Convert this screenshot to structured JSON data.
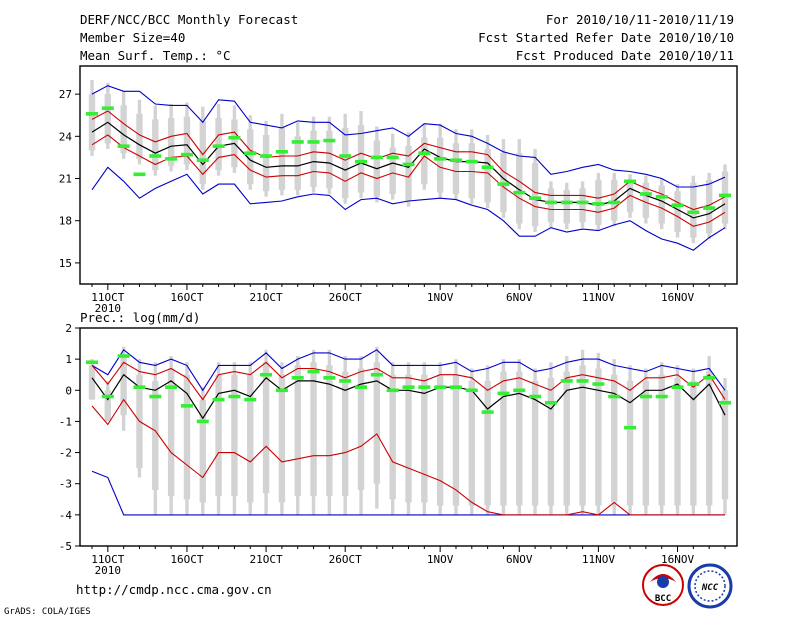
{
  "header": {
    "left1": "DERF/NCC/BCC Monthly Forecast",
    "left2": "Member Size=40",
    "left3": "Mean Surf. Temp.: °C",
    "right1": "For 2010/10/11-2010/11/19",
    "right2": "Fcst Started Refer Date 2010/10/10",
    "right3": "Fcst Produced Date 2010/10/11"
  },
  "footer": {
    "url": "http://cmdp.ncc.cma.gov.cn",
    "credit": "GrADS: COLA/IGES",
    "logo_bcc": "BCC",
    "logo_ncc": "NCC"
  },
  "colors": {
    "box": "#d3d3d3",
    "ens_mean": "#000000",
    "std": "#cc0000",
    "range": "#0000cc",
    "median": "#33ee33"
  },
  "chart_data": [
    {
      "type": "box",
      "title": "",
      "ylabel": "Mean Surf. Temp.: °C",
      "ylim": [
        13.5,
        29
      ],
      "yticks": [
        15,
        18,
        21,
        24,
        27
      ],
      "xlim": [
        0,
        40
      ],
      "xticks": [
        {
          "d": 1,
          "label": "11OCT"
        },
        {
          "d": 6,
          "label": "16OCT"
        },
        {
          "d": 11,
          "label": "21OCT"
        },
        {
          "d": 16,
          "label": "26OCT"
        },
        {
          "d": 22,
          "label": "1NOV"
        },
        {
          "d": 27,
          "label": "6NOV"
        },
        {
          "d": 32,
          "label": "11NOV"
        },
        {
          "d": 37,
          "label": "16NOV"
        }
      ],
      "year_label": "2010",
      "series": {
        "ens_mean": [
          24.3,
          25.0,
          24.1,
          23.4,
          22.8,
          23.3,
          23.4,
          22.0,
          23.3,
          23.5,
          22.3,
          21.8,
          21.9,
          21.9,
          22.2,
          22.1,
          21.6,
          22.1,
          21.7,
          22.1,
          21.8,
          23.1,
          22.5,
          22.2,
          22.2,
          22.1,
          21.0,
          20.2,
          19.5,
          19.3,
          19.3,
          19.3,
          19.1,
          19.4,
          20.3,
          19.8,
          19.4,
          18.8,
          18.2,
          18.5,
          19.2
        ],
        "upper_std": [
          25.2,
          25.8,
          24.9,
          24.1,
          23.6,
          24.0,
          24.2,
          22.7,
          24.1,
          24.3,
          23.0,
          22.5,
          22.6,
          22.6,
          22.9,
          22.8,
          22.3,
          22.8,
          22.4,
          22.8,
          22.6,
          23.5,
          23.2,
          22.9,
          22.9,
          22.7,
          21.5,
          20.8,
          20.0,
          19.8,
          19.8,
          19.8,
          19.6,
          19.9,
          20.8,
          20.3,
          19.9,
          19.3,
          18.8,
          19.1,
          19.7
        ],
        "lower_std": [
          23.4,
          24.1,
          23.2,
          22.6,
          22.0,
          22.5,
          22.6,
          21.3,
          22.5,
          22.7,
          21.6,
          21.1,
          21.2,
          21.2,
          21.5,
          21.4,
          20.8,
          21.4,
          21.0,
          21.4,
          21.1,
          22.6,
          21.8,
          21.5,
          21.5,
          21.4,
          20.4,
          19.6,
          19.0,
          18.8,
          18.8,
          18.8,
          18.6,
          18.9,
          19.8,
          19.3,
          18.9,
          18.3,
          17.6,
          17.9,
          18.6
        ],
        "upper_range": [
          27.0,
          27.6,
          27.2,
          27.2,
          26.3,
          26.2,
          26.2,
          25.0,
          26.6,
          26.5,
          25.0,
          24.8,
          24.6,
          25.1,
          25.0,
          25.0,
          24.1,
          24.2,
          24.4,
          24.6,
          24.0,
          24.9,
          24.8,
          24.2,
          24.0,
          23.5,
          22.9,
          22.6,
          22.5,
          21.3,
          21.5,
          21.8,
          22.0,
          21.6,
          21.5,
          21.3,
          21.0,
          20.4,
          20.4,
          20.6,
          21.1
        ],
        "lower_range": [
          20.2,
          21.8,
          20.8,
          19.6,
          20.3,
          20.8,
          21.3,
          19.9,
          20.6,
          20.6,
          19.2,
          19.3,
          19.4,
          19.7,
          19.9,
          19.8,
          18.8,
          19.5,
          19.6,
          19.2,
          19.4,
          19.5,
          19.6,
          19.5,
          19.1,
          18.8,
          18.0,
          16.9,
          16.9,
          17.5,
          17.2,
          17.4,
          17.3,
          17.7,
          18.0,
          17.3,
          16.7,
          16.4,
          15.9,
          16.8,
          17.5
        ],
        "box_top": [
          28.0,
          27.8,
          27.2,
          26.6,
          26.2,
          26.3,
          26.4,
          26.1,
          26.3,
          26.2,
          25.5,
          25.1,
          25.6,
          25.0,
          25.4,
          25.4,
          25.6,
          25.8,
          24.7,
          24.2,
          24.3,
          24.9,
          24.9,
          24.5,
          24.5,
          24.1,
          23.8,
          23.8,
          23.1,
          20.8,
          20.7,
          20.8,
          21.4,
          21.4,
          21.3,
          21.2,
          21.0,
          20.6,
          21.2,
          21.4,
          22.0
        ],
        "box_q3": [
          27.0,
          27.0,
          26.2,
          25.6,
          25.2,
          25.3,
          25.4,
          25.1,
          25.3,
          25.2,
          24.5,
          24.1,
          24.6,
          24.0,
          24.4,
          24.4,
          24.6,
          24.8,
          23.7,
          23.2,
          23.3,
          23.9,
          23.9,
          23.5,
          23.5,
          23.1,
          22.8,
          22.8,
          22.1,
          20.3,
          20.2,
          20.3,
          20.9,
          20.9,
          20.8,
          20.7,
          20.5,
          20.1,
          20.7,
          20.9,
          21.5
        ],
        "box_q1": [
          23.0,
          23.5,
          22.8,
          22.4,
          21.6,
          21.9,
          22.0,
          20.6,
          21.6,
          21.8,
          20.6,
          20.1,
          20.2,
          20.2,
          20.4,
          20.3,
          19.6,
          20.0,
          19.7,
          19.9,
          19.4,
          20.6,
          20.0,
          19.9,
          19.6,
          19.3,
          18.6,
          17.8,
          17.6,
          17.9,
          17.8,
          17.9,
          17.7,
          18.0,
          18.6,
          18.2,
          17.8,
          17.2,
          16.8,
          17.1,
          17.8
        ],
        "box_bottom": [
          22.6,
          23.1,
          22.4,
          22.0,
          21.2,
          21.5,
          21.6,
          20.2,
          21.2,
          21.4,
          20.2,
          19.7,
          19.8,
          19.8,
          20.0,
          19.9,
          19.2,
          19.6,
          19.3,
          19.5,
          19.0,
          20.2,
          19.6,
          19.5,
          19.2,
          18.9,
          18.2,
          17.4,
          17.2,
          17.5,
          17.4,
          17.5,
          17.3,
          17.6,
          18.2,
          17.8,
          17.4,
          16.8,
          16.4,
          16.7,
          17.4
        ],
        "median": [
          25.6,
          26.0,
          23.3,
          21.3,
          22.6,
          22.4,
          22.7,
          22.3,
          23.3,
          23.9,
          22.8,
          22.6,
          22.9,
          23.6,
          23.6,
          23.7,
          22.6,
          22.2,
          22.5,
          22.5,
          22.0,
          22.8,
          22.4,
          22.3,
          22.2,
          21.8,
          20.6,
          20.0,
          19.6,
          19.3,
          19.3,
          19.3,
          19.2,
          19.3,
          20.8,
          19.9,
          19.7,
          19.1,
          18.6,
          18.9,
          19.8
        ]
      }
    },
    {
      "type": "box",
      "title": "Prec.: log(mm/d)",
      "ylabel": "Prec.: log(mm/d)",
      "ylim": [
        -5,
        2
      ],
      "yticks": [
        -5,
        -4,
        -3,
        -2,
        -1,
        0,
        1,
        2
      ],
      "xlim": [
        0,
        40
      ],
      "xticks": [
        {
          "d": 1,
          "label": "11OCT"
        },
        {
          "d": 6,
          "label": "16OCT"
        },
        {
          "d": 11,
          "label": "21OCT"
        },
        {
          "d": 16,
          "label": "26OCT"
        },
        {
          "d": 22,
          "label": "1NOV"
        },
        {
          "d": 27,
          "label": "6NOV"
        },
        {
          "d": 32,
          "label": "11NOV"
        },
        {
          "d": 37,
          "label": "16NOV"
        }
      ],
      "year_label": "2010",
      "series": {
        "ens_mean": [
          0.4,
          -0.3,
          0.5,
          0.1,
          0.0,
          0.3,
          -0.1,
          -0.9,
          -0.1,
          0.0,
          -0.2,
          0.4,
          0.0,
          0.3,
          0.3,
          0.2,
          0.0,
          0.2,
          0.3,
          0.0,
          0.0,
          -0.1,
          0.1,
          0.1,
          0.0,
          -0.6,
          -0.2,
          -0.1,
          -0.3,
          -0.6,
          0.0,
          0.1,
          0.0,
          -0.1,
          -0.4,
          0.0,
          0.0,
          0.2,
          -0.3,
          0.2,
          -0.8
        ],
        "upper_std": [
          0.8,
          0.2,
          0.9,
          0.6,
          0.5,
          0.7,
          0.4,
          -0.3,
          0.5,
          0.6,
          0.5,
          0.9,
          0.4,
          0.7,
          0.7,
          0.6,
          0.4,
          0.6,
          0.7,
          0.4,
          0.4,
          0.3,
          0.5,
          0.5,
          0.4,
          0.0,
          0.3,
          0.4,
          0.2,
          0.0,
          0.4,
          0.5,
          0.4,
          0.3,
          0.0,
          0.4,
          0.4,
          0.5,
          0.1,
          0.5,
          -0.3
        ],
        "lower_std": [
          -0.5,
          -1.1,
          -0.3,
          -1.0,
          -1.3,
          -2.0,
          -2.4,
          -2.8,
          -2.0,
          -2.0,
          -2.3,
          -1.8,
          -2.3,
          -2.2,
          -2.1,
          -2.1,
          -2.0,
          -1.8,
          -1.4,
          -2.3,
          -2.5,
          -2.7,
          -2.9,
          -3.2,
          -3.6,
          -3.9,
          -4.0,
          -4.0,
          -4.0,
          -4.0,
          -4.0,
          -3.9,
          -4.0,
          -3.6,
          -4.0,
          -4.0,
          -4.0,
          -4.0,
          -4.0,
          -4.0,
          -4.0
        ],
        "upper_range": [
          0.8,
          0.5,
          1.3,
          0.9,
          0.8,
          1.0,
          0.8,
          0.0,
          0.8,
          0.8,
          0.8,
          1.2,
          0.7,
          1.0,
          1.2,
          1.2,
          1.0,
          1.0,
          1.3,
          0.8,
          0.8,
          0.8,
          0.8,
          0.9,
          0.6,
          0.7,
          0.9,
          0.9,
          0.6,
          0.7,
          0.9,
          1.0,
          1.0,
          0.8,
          0.7,
          0.6,
          0.8,
          0.7,
          0.6,
          0.7,
          0.0
        ],
        "lower_range": [
          -2.6,
          -2.8,
          -4.0,
          -4.0,
          -4.0,
          -4.0,
          -4.0,
          -4.0,
          -4.0,
          -4.0,
          -4.0,
          -4.0,
          -4.0,
          -4.0,
          -4.0,
          -4.0,
          -4.0,
          -4.0,
          -4.0,
          -4.0,
          -4.0,
          -4.0,
          -4.0,
          -4.0,
          -4.0,
          -4.0,
          -4.0,
          -4.0,
          -4.0,
          -4.0,
          -4.0,
          -4.0,
          -4.0,
          -4.0,
          -4.0,
          -4.0,
          -4.0,
          -4.0,
          -4.0,
          -4.0,
          -4.0
        ],
        "box_top": [
          1.0,
          0.3,
          1.4,
          1.0,
          0.9,
          1.1,
          0.9,
          0.1,
          0.9,
          0.9,
          0.9,
          1.3,
          0.9,
          1.1,
          1.3,
          1.3,
          1.1,
          1.1,
          1.4,
          0.9,
          0.9,
          0.9,
          0.9,
          1.0,
          0.7,
          0.8,
          1.0,
          1.0,
          0.7,
          0.9,
          1.1,
          1.3,
          1.2,
          1.0,
          0.8,
          0.7,
          0.9,
          0.8,
          0.7,
          1.1,
          0.4
        ],
        "box_q3": [
          0.8,
          0.0,
          1.1,
          0.5,
          0.3,
          0.7,
          0.5,
          -0.3,
          0.5,
          0.5,
          0.5,
          0.9,
          0.5,
          0.8,
          0.9,
          0.8,
          0.6,
          0.7,
          0.9,
          0.5,
          0.5,
          0.5,
          0.5,
          0.5,
          0.3,
          0.3,
          0.6,
          0.6,
          0.3,
          0.4,
          0.6,
          0.8,
          0.7,
          0.5,
          0.3,
          0.3,
          0.5,
          0.4,
          0.3,
          0.6,
          0.0
        ],
        "box_q1": [
          -0.3,
          -1.0,
          -0.8,
          -2.5,
          -3.2,
          -3.4,
          -3.5,
          -3.6,
          -3.4,
          -3.4,
          -3.6,
          -3.3,
          -3.6,
          -3.4,
          -3.4,
          -3.4,
          -3.4,
          -3.2,
          -3.0,
          -3.5,
          -3.6,
          -3.6,
          -3.7,
          -3.7,
          -3.7,
          -3.7,
          -3.7,
          -3.7,
          -3.7,
          -3.7,
          -3.7,
          -3.7,
          -3.7,
          -3.6,
          -3.7,
          -3.7,
          -3.7,
          -3.7,
          -3.7,
          -3.7,
          -3.5
        ],
        "box_bottom": [
          -0.3,
          -1.0,
          -1.3,
          -2.8,
          -4.0,
          -4.0,
          -4.0,
          -4.0,
          -4.0,
          -4.0,
          -4.0,
          -4.0,
          -4.0,
          -4.0,
          -4.0,
          -4.0,
          -4.0,
          -4.0,
          -3.8,
          -4.0,
          -4.0,
          -4.0,
          -4.0,
          -4.0,
          -4.0,
          -4.0,
          -4.0,
          -4.0,
          -4.0,
          -4.0,
          -4.0,
          -4.0,
          -4.0,
          -4.0,
          -4.0,
          -4.0,
          -4.0,
          -4.0,
          -4.0,
          -4.0,
          -4.0
        ],
        "median": [
          0.9,
          -0.2,
          1.1,
          0.1,
          -0.2,
          0.1,
          -0.5,
          -1.0,
          -0.3,
          -0.2,
          -0.3,
          0.5,
          0.0,
          0.4,
          0.6,
          0.4,
          0.3,
          0.1,
          0.5,
          0.0,
          0.1,
          0.1,
          0.1,
          0.1,
          0.0,
          -0.7,
          -0.1,
          0.0,
          -0.2,
          -0.4,
          0.3,
          0.3,
          0.2,
          -0.2,
          -1.2,
          -0.2,
          -0.2,
          0.1,
          0.2,
          0.4,
          -0.4
        ]
      }
    }
  ]
}
